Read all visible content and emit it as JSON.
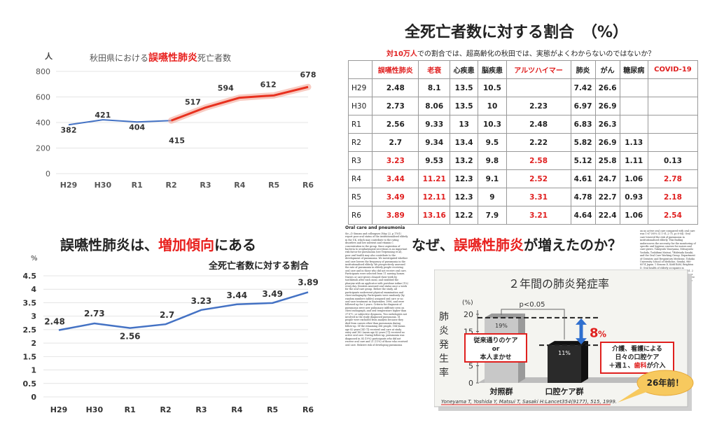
{
  "top_left_chart": {
    "title_pre": "秋田県における",
    "title_em": "誤嚥性肺炎",
    "title_post": "死亡者数",
    "unit": "人"
  },
  "top_right": {
    "title": "全死亡者数に対する割合　（%）",
    "subtitle_red": "対10万人",
    "subtitle_rest": "での割合では、超高齢化の秋田では、実態がよくわからないのではないか？",
    "headers": [
      "",
      "誤嚥性肺炎",
      "老衰",
      "心疾患",
      "脳疾患",
      "アルツハイマー",
      "肺炎",
      "がん",
      "糖尿病",
      "COVID-19"
    ],
    "rows": [
      [
        "H29",
        "2.48",
        "8.1",
        "13.5",
        "10.5",
        "",
        "7.42",
        "26.6",
        "",
        ""
      ],
      [
        "H30",
        "2.73",
        "8.06",
        "13.5",
        "10",
        "2.23",
        "6.97",
        "26.9",
        "",
        ""
      ],
      [
        "R1",
        "2.56",
        "9.33",
        "13",
        "10.3",
        "2.48",
        "6.83",
        "26.3",
        "",
        ""
      ],
      [
        "R2",
        "2.7",
        "9.34",
        "13.4",
        "9.5",
        "2.22",
        "5.82",
        "26.9",
        "1.13",
        ""
      ],
      [
        "R3",
        "3.23",
        "9.53",
        "13.2",
        "9.8",
        "2.58",
        "5.12",
        "25.8",
        "1.11",
        "0.13"
      ],
      [
        "R4",
        "3.44",
        "11.21",
        "12.3",
        "9.1",
        "2.52",
        "4.61",
        "24.7",
        "1.06",
        "2.78"
      ],
      [
        "R5",
        "3.49",
        "12.11",
        "12.3",
        "9",
        "3.31",
        "4.78",
        "22.7",
        "0.93",
        "2.18"
      ],
      [
        "R6",
        "3.89",
        "13.16",
        "12.2",
        "7.9",
        "3.21",
        "4.64",
        "22.4",
        "1.06",
        "2.54"
      ]
    ],
    "red_header_cols": [
      1,
      2,
      5,
      9
    ]
  },
  "bottom_left": {
    "heading_pre": "誤嚥性肺炎は、",
    "heading_em": "増加傾向",
    "heading_post": "にある",
    "chart_title": "全死亡者数に対する割合",
    "unit": "%"
  },
  "bottom_right": {
    "question_pre": "なぜ、",
    "question_em": "誤嚥性肺炎",
    "question_post": "が増えたのか？",
    "slide_title": "２年間の肺炎発症率",
    "y_axis_label": "肺炎発生率",
    "y_unit": "(%)",
    "p_value": "p<0.05",
    "diff_label": "8",
    "diff_unit": "%",
    "bar_label_control": "19%",
    "bar_label_oral": "11%",
    "box_left_lines": [
      "従来通りのケア",
      "or",
      "本人まかせ"
    ],
    "box_right_lines": [
      "介護、看護による",
      "日々の口腔ケア"
    ],
    "box_right_last_pre": "＋週１、",
    "box_right_last_em": "歯科",
    "box_right_last_post": "が介入",
    "group_control": "対照群",
    "group_oral": "口腔ケア群",
    "citation": "Yoneyama T, Yoshida Y, Matsui T, Sasaki H:Lancet354(9177), 515, 1999.",
    "callout": "26年前！",
    "paper_heading": "Oral care and pneumonia",
    "paper_text_left": "Sir—D Simons and colleagues (May 22, p 1761) report poor oral status of the institutionalised elderly in the UK, which may contribute to the rating disorders and low nutrient and vitamin C concentration in the group. Since aspiration of bacteria to oropharyngeal secretions is an important risk factor for pneumonia (see Terpenning et al), poor oral health may also contribute to the development of pneumonia. We investigated whether oral care lowers the frequency of pneumonia in the institutionalised elderly. We prospectively assessed the rate of pneumonia in elderly people receiving oral care and in those who did not receive oral care. Participants were selected from 11 nursing homes. Nurses or care-givers cleaned their teeth by toothbrush after each meal, and swabbed the pharynx with an applicator with povidone iodine (1%) every day. Dentists assessed oral status once a week for the oral-care group. Before the study, all participants underwent physical examination and chest radiography. Participants were randomly (by random numbers tables) assigned oral care or no oral-care treatment in September, 1996, and were followed up for 2 years. Criteria for diagnosis of pneumonia were new pulmonary infiltrate seen on chest radiograph, and oral temperature higher than 37·8°C, or subjective dyspnoea. Two radiologists not involved in the study diagnosed pneumonia. 51 people were excluded from analysis because they died from causes other than pneumonia during follow-up. Of the remaining 366 people, 184 (mean age 82 years [SD 7]) received oral care at study entry and 182 (mean age 82 years [7]) received no active oral care. During follow-up, pneumonia was diagnosed in 34 (19%) participants who did not receive oral care and 21 (11%) of those who received oral care. Relative risk of developing pneumonia",
    "paper_text_right": "on no active oral care compared with oral care was 1·67 (95% CI 1·01–2·75, p=0·04). Oral care lowered the risk of pneumonia in institutionalised elderly. This finding underscores the necessity for the monitoring of specific oral hygiene courses for nurses and care-givers. Takeyoshi Yoneyama, Mitsuyoshi Yoshida, Toshifumi Matsui, *Hidetada Sasaki, and the Oral Care Working Group. Department of Geriatric and Respiratory Medicine, Tohoku University School of Medicine, Sendai, 980-8574 Japan. 1 Simons D, Kidd EAM, Beighton D. Oral health of elderly occupants in residential homes. Lancet 1999; 353: 1761. 2 Johanson WG, Pierce AK, Sanford JP, Thomas GD. Nosocomial infections with gram-negative bacilli: the significance of colonization of the respiratory tract. Ann Intern Med 1972; 77: 701–06."
  },
  "chart_data": [
    {
      "type": "line",
      "title": "秋田県における誤嚥性肺炎死亡者数",
      "ylabel": "人",
      "x": [
        "H29",
        "H30",
        "R1",
        "R2",
        "R3",
        "R4",
        "R5",
        "R6"
      ],
      "values": [
        382,
        421,
        404,
        415,
        517,
        594,
        612,
        678
      ],
      "ylim": [
        0,
        800
      ],
      "yticks": [
        0,
        200,
        400,
        600,
        800
      ],
      "colors": {
        "early": "#4472c4",
        "late": "#e8301e"
      },
      "grid": true
    },
    {
      "type": "line",
      "title": "全死亡者数に対する割合",
      "ylabel": "%",
      "x": [
        "H29",
        "H30",
        "R1",
        "R2",
        "R3",
        "R4",
        "R5",
        "R6"
      ],
      "values": [
        2.48,
        2.73,
        2.56,
        2.7,
        3.23,
        3.44,
        3.49,
        3.89
      ],
      "ylim": [
        0,
        4.5
      ],
      "yticks": [
        0,
        0.5,
        1,
        1.5,
        2,
        2.5,
        3,
        3.5,
        4,
        4.5
      ],
      "colors": {
        "line": "#4472c4"
      },
      "grid": true
    },
    {
      "type": "bar",
      "title": "２年間の肺炎発症率",
      "categories": [
        "対照群",
        "口腔ケア群"
      ],
      "values": [
        19,
        11
      ],
      "ylim": [
        0,
        20
      ],
      "yticks": [
        0,
        5,
        10,
        15,
        20
      ],
      "colors": {
        "control": "#c8c8c8",
        "oral": "#2a2a2a"
      }
    }
  ]
}
